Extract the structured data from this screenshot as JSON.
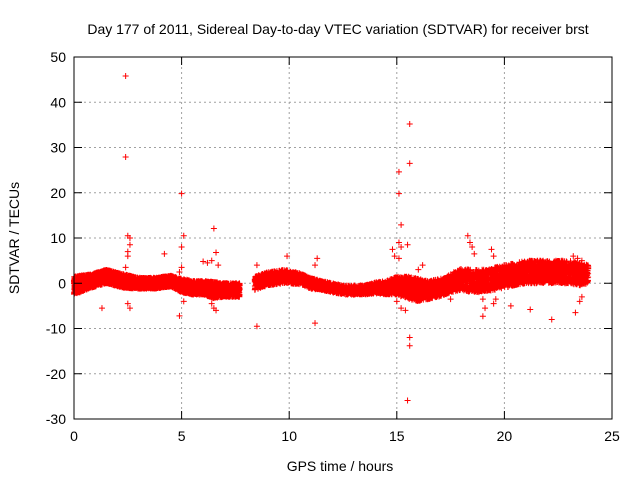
{
  "chart_data": {
    "type": "scatter",
    "title": "Day 177 of 2011, Sidereal Day-to-day VTEC variation (SDTVAR) for receiver brst",
    "xlabel": "GPS time / hours",
    "ylabel": "SDTVAR / TECUs",
    "xlim": [
      0,
      25
    ],
    "ylim": [
      -30,
      50
    ],
    "xticks": [
      0,
      5,
      10,
      15,
      20,
      25
    ],
    "yticks": [
      -30,
      -20,
      -10,
      0,
      10,
      20,
      30,
      40,
      50
    ],
    "xtick_labels": [
      "0",
      "5",
      "10",
      "15",
      "20",
      "25"
    ],
    "ytick_labels": [
      "-30",
      "-20",
      "-10",
      "0",
      "10",
      "20",
      "30",
      "40",
      "50"
    ],
    "grid": true,
    "marker": "+",
    "marker_color": "#ff0000",
    "dense_band": {
      "description": "continuous band of points around zero",
      "segments": [
        {
          "x": [
            0.0,
            0.8,
            1.5,
            2.3,
            3.0,
            3.8,
            4.5,
            5.0,
            5.5,
            6.0,
            6.5,
            7.0,
            7.5,
            7.7
          ],
          "center": [
            -0.5,
            0.5,
            1.5,
            0.5,
            0.0,
            0.0,
            0.5,
            -0.5,
            -1.0,
            -1.0,
            -1.5,
            -1.5,
            -1.5,
            -1.5
          ],
          "half_width": [
            2.0,
            1.5,
            1.5,
            1.5,
            1.2,
            1.2,
            1.2,
            1.5,
            1.5,
            1.5,
            1.8,
            1.5,
            1.5,
            1.5
          ]
        },
        {
          "x": [
            8.4,
            9.0,
            9.8,
            10.5,
            11.0,
            11.5,
            12.0,
            12.5,
            13.0,
            13.5,
            14.0,
            14.5,
            15.0,
            15.5,
            16.0,
            16.5,
            17.0,
            17.5,
            18.0,
            18.5,
            19.0,
            19.5,
            20.0,
            20.5,
            21.0,
            21.5,
            22.0,
            22.5,
            23.0,
            23.5,
            23.9
          ],
          "center": [
            0.0,
            1.0,
            1.5,
            1.0,
            0.0,
            -0.5,
            -1.0,
            -1.5,
            -1.5,
            -1.5,
            -1.0,
            -1.0,
            -0.5,
            -1.0,
            -1.5,
            -1.5,
            -1.0,
            0.0,
            1.0,
            0.5,
            0.5,
            1.0,
            1.5,
            2.0,
            2.5,
            2.5,
            2.5,
            2.5,
            2.5,
            2.0,
            2.0
          ],
          "half_width": [
            1.5,
            1.5,
            1.5,
            1.2,
            1.2,
            1.0,
            1.0,
            1.0,
            1.0,
            1.0,
            1.2,
            1.5,
            2.0,
            2.5,
            2.5,
            2.0,
            2.0,
            2.0,
            2.5,
            2.5,
            2.5,
            2.5,
            2.5,
            2.5,
            2.5,
            2.5,
            2.5,
            2.5,
            2.5,
            2.5,
            2.0
          ]
        }
      ]
    },
    "points": [
      [
        2.4,
        45.8
      ],
      [
        2.4,
        27.9
      ],
      [
        2.5,
        10.5
      ],
      [
        2.6,
        10.0
      ],
      [
        2.6,
        8.5
      ],
      [
        2.5,
        7.0
      ],
      [
        2.5,
        6.0
      ],
      [
        2.6,
        -5.5
      ],
      [
        2.5,
        -4.5
      ],
      [
        2.4,
        3.5
      ],
      [
        1.3,
        -5.5
      ],
      [
        4.2,
        6.5
      ],
      [
        4.9,
        -7.2
      ],
      [
        5.0,
        19.8
      ],
      [
        5.1,
        10.5
      ],
      [
        5.0,
        8.0
      ],
      [
        5.1,
        -4.0
      ],
      [
        5.0,
        3.5
      ],
      [
        4.9,
        2.5
      ],
      [
        6.0,
        4.8
      ],
      [
        6.2,
        4.5
      ],
      [
        6.4,
        5.0
      ],
      [
        6.5,
        12.1
      ],
      [
        6.6,
        6.8
      ],
      [
        6.5,
        -5.5
      ],
      [
        6.6,
        -6.0
      ],
      [
        6.4,
        -4.5
      ],
      [
        6.7,
        4.0
      ],
      [
        8.5,
        -9.5
      ],
      [
        8.5,
        4.0
      ],
      [
        9.9,
        6.0
      ],
      [
        11.2,
        -8.8
      ],
      [
        11.3,
        5.5
      ],
      [
        11.2,
        4.0
      ],
      [
        14.8,
        7.5
      ],
      [
        14.9,
        6.0
      ],
      [
        15.0,
        -4.0
      ],
      [
        15.1,
        24.6
      ],
      [
        15.1,
        19.8
      ],
      [
        15.2,
        12.9
      ],
      [
        15.1,
        9.0
      ],
      [
        15.2,
        8.0
      ],
      [
        15.1,
        5.5
      ],
      [
        15.2,
        -5.5
      ],
      [
        15.5,
        8.5
      ],
      [
        15.6,
        35.2
      ],
      [
        15.6,
        26.5
      ],
      [
        15.6,
        -12.0
      ],
      [
        15.6,
        -13.8
      ],
      [
        15.5,
        -25.9
      ],
      [
        15.4,
        -6.0
      ],
      [
        16.2,
        4.0
      ],
      [
        16.0,
        3.0
      ],
      [
        17.5,
        -3.5
      ],
      [
        18.3,
        10.5
      ],
      [
        18.4,
        9.0
      ],
      [
        18.5,
        8.0
      ],
      [
        18.6,
        6.5
      ],
      [
        19.0,
        -7.3
      ],
      [
        19.1,
        -5.5
      ],
      [
        19.0,
        -3.5
      ],
      [
        19.4,
        7.5
      ],
      [
        19.5,
        6.0
      ],
      [
        19.5,
        -4.5
      ],
      [
        19.6,
        -3.5
      ],
      [
        20.3,
        -5.0
      ],
      [
        21.2,
        -5.8
      ],
      [
        22.2,
        -8.0
      ],
      [
        23.2,
        6.0
      ],
      [
        23.4,
        5.5
      ],
      [
        23.6,
        5.0
      ],
      [
        23.3,
        -6.5
      ],
      [
        23.5,
        -4.0
      ],
      [
        23.6,
        -3.0
      ],
      [
        22.8,
        3.5
      ]
    ]
  }
}
